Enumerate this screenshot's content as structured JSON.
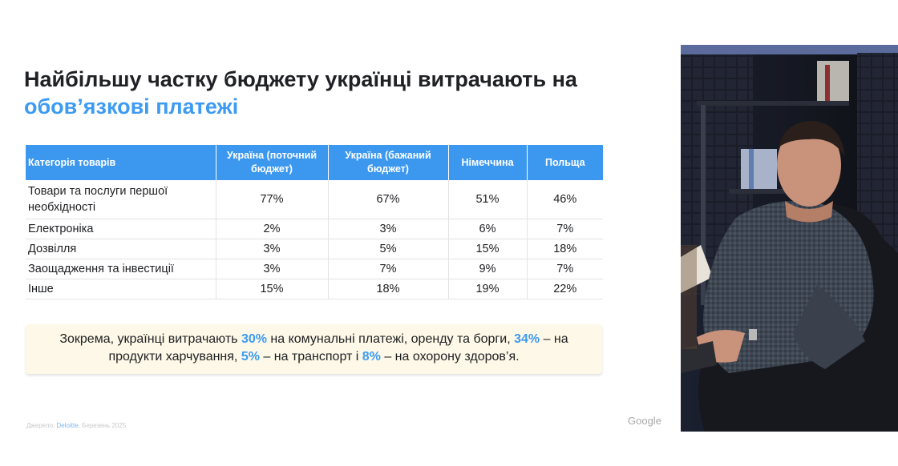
{
  "slide": {
    "title_part1": "Найбільшу частку бюджету українці витрачають на",
    "title_part2": "обов’язкові платежі"
  },
  "table": {
    "headers": [
      "Категорія товарів",
      "Україна (поточний бюджет)",
      "Україна (бажаний бюджет)",
      "Німеччина",
      "Польща"
    ],
    "rows": [
      [
        "Товари та послуги першої необхідності",
        "77%",
        "67%",
        "51%",
        "46%"
      ],
      [
        "Електроніка",
        "2%",
        "3%",
        "6%",
        "7%"
      ],
      [
        "Дозвілля",
        "3%",
        "5%",
        "15%",
        "18%"
      ],
      [
        "Заощадження та інвестиції",
        "3%",
        "7%",
        "9%",
        "7%"
      ],
      [
        "Інше",
        "15%",
        "18%",
        "19%",
        "22%"
      ]
    ]
  },
  "note": {
    "p1": "Зокрема, українці витрачають ",
    "v1": "30%",
    "p2": " на комунальні платежі, оренду та борги, ",
    "v2": "34%",
    "p3": " – на продукти харчування, ",
    "v3": "5%",
    "p4": " – на транспорт і ",
    "v4": "8%",
    "p5": " – на охорону здоров’я."
  },
  "footer": {
    "source_prefix": "Джерело: ",
    "source_brand": "Deloitte",
    "source_suffix": ", Березень 2025",
    "logo": "Google"
  },
  "colors": {
    "accent": "#3d9bf2",
    "header_bg": "#3c98ef",
    "note_bg": "#fdf8e7"
  },
  "icons": {
    "video": "presenter-video-feed"
  }
}
